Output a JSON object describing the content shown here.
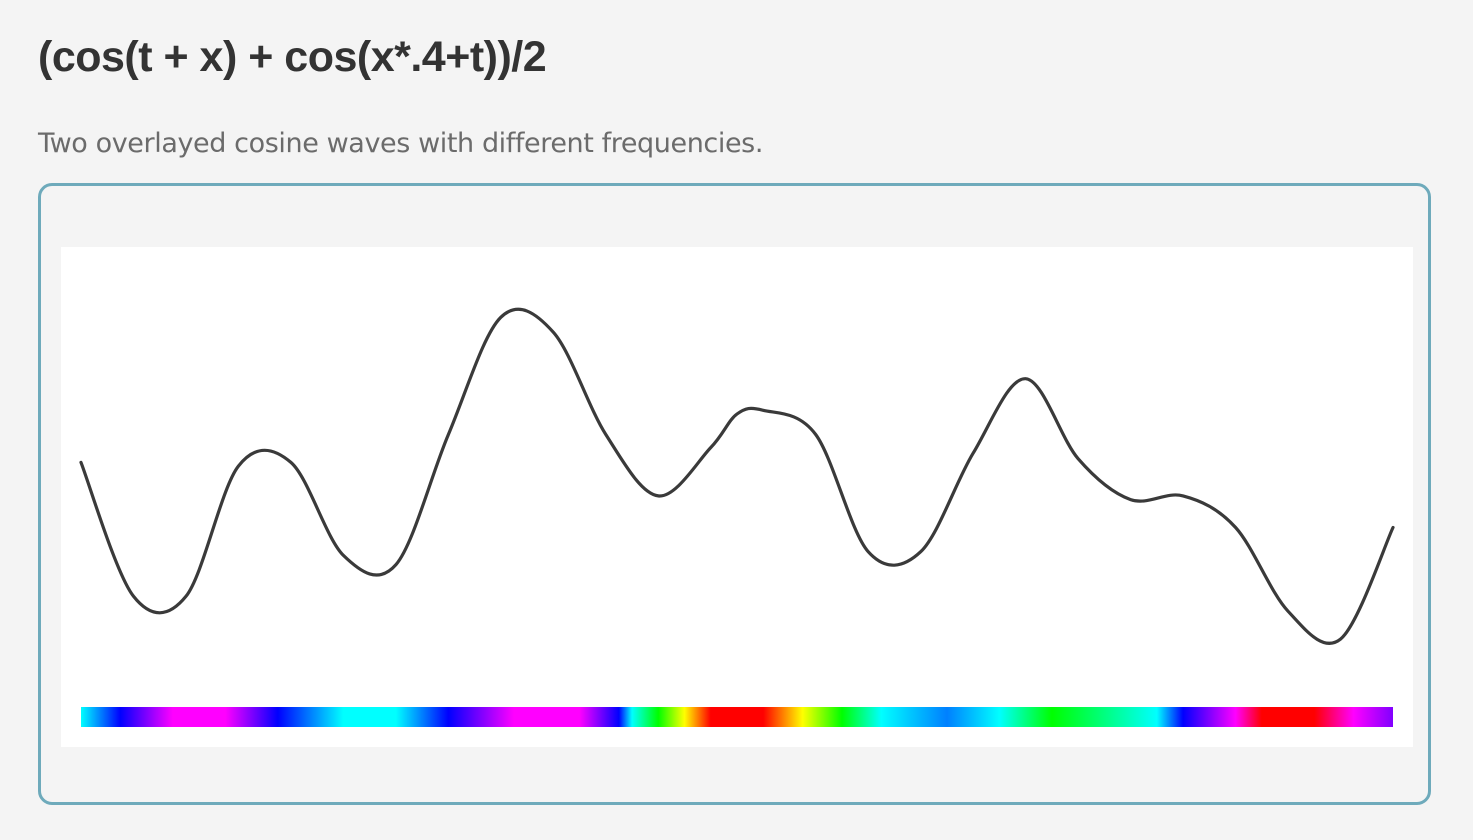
{
  "header": {
    "title": "(cos(t + x) + cos(x*.4+t))/2",
    "description": "Two overlayed cosine waves with different frequencies."
  },
  "colors": {
    "background": "#f4f4f4",
    "panel_border": "#6eaabb",
    "plot_background": "#ffffff",
    "curve": "#3a3a3a",
    "title_text": "#333333",
    "description_text": "#6b6b6b"
  },
  "chart_data": {
    "type": "line",
    "formula": "(cos(t + x) + cos(x*.4+t))/2",
    "grid": false,
    "legend": "none",
    "colorbar": "hue",
    "xlim": [
      0,
      1
    ],
    "ylim": [
      -1,
      1
    ],
    "series": [
      {
        "x": [
          0.0,
          0.04,
          0.08,
          0.12,
          0.16,
          0.2,
          0.24,
          0.28,
          0.32,
          0.36,
          0.4,
          0.44,
          0.48,
          0.5,
          0.52,
          0.56,
          0.6,
          0.64,
          0.68,
          0.72,
          0.76,
          0.8,
          0.84,
          0.88,
          0.92,
          0.96,
          1.0
        ],
        "y": [
          0.1,
          -0.62,
          -0.62,
          0.08,
          0.1,
          -0.4,
          -0.45,
          0.25,
          0.88,
          0.8,
          0.25,
          -0.08,
          0.18,
          0.36,
          0.38,
          0.25,
          -0.38,
          -0.38,
          0.15,
          0.55,
          0.12,
          -0.1,
          -0.08,
          -0.25,
          -0.7,
          -0.85,
          -0.25
        ]
      }
    ]
  }
}
